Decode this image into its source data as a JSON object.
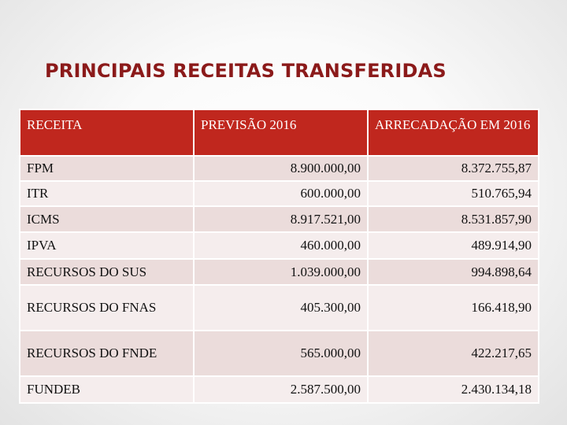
{
  "title": "PRINCIPAIS RECEITAS TRANSFERIDAS",
  "table": {
    "headers": [
      "RECEITA",
      "PREVISÃO 2016",
      "ARRECADAÇÃO EM 2016"
    ],
    "rows": [
      {
        "receita": "FPM",
        "previsao": "8.900.000,00",
        "arrecadacao": "8.372.755,87"
      },
      {
        "receita": "ITR",
        "previsao": "600.000,00",
        "arrecadacao": "510.765,94"
      },
      {
        "receita": "ICMS",
        "previsao": "8.917.521,00",
        "arrecadacao": "8.531.857,90"
      },
      {
        "receita": "IPVA",
        "previsao": "460.000,00",
        "arrecadacao": "489.914,90"
      },
      {
        "receita": "RECURSOS DO SUS",
        "previsao": "1.039.000,00",
        "arrecadacao": "994.898,64"
      },
      {
        "receita": "RECURSOS DO FNAS",
        "previsao": "405.300,00",
        "arrecadacao": "166.418,90"
      },
      {
        "receita": "RECURSOS DO FNDE",
        "previsao": "565.000,00",
        "arrecadacao": "422.217,65"
      },
      {
        "receita": "FUNDEB",
        "previsao": "2.587.500,00",
        "arrecadacao": "2.430.134,18"
      }
    ]
  },
  "colors": {
    "title": "#8b1a1a",
    "header_bg": "#c0271e",
    "row_odd": "#ebdcdb",
    "row_even": "#f5eded"
  }
}
